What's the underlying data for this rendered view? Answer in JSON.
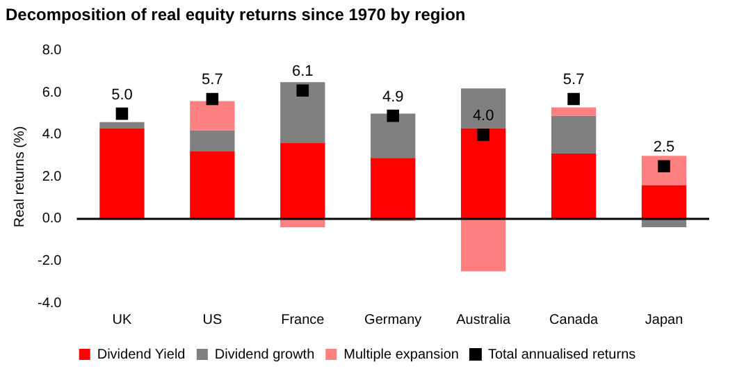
{
  "chart_data": {
    "type": "bar",
    "title": "Decomposition of real equity returns since 1970 by region",
    "ylabel": "Real returns (%)",
    "categories": [
      "UK",
      "US",
      "France",
      "Germany",
      "Australia",
      "Canada",
      "Japan"
    ],
    "stacked": true,
    "series": [
      {
        "name": "Dividend Yield",
        "color": "#ff0000",
        "values": [
          4.3,
          3.2,
          3.6,
          2.9,
          4.3,
          3.1,
          1.6
        ]
      },
      {
        "name": "Dividend growth",
        "color": "#808080",
        "values": [
          0.3,
          1.0,
          2.9,
          2.1,
          1.9,
          1.8,
          -0.4
        ]
      },
      {
        "name": "Multiple expansion",
        "color": "#ff8080",
        "values": [
          0.0,
          1.4,
          -0.4,
          -0.1,
          -2.5,
          0.4,
          1.4
        ]
      },
      {
        "name": "Total annualised returns",
        "type": "scatter",
        "color": "#000000",
        "marker": "square",
        "x": [
          "UK",
          "US",
          "France",
          "Germany",
          "Australia",
          "Canada",
          "Japan"
        ],
        "values": [
          5.0,
          5.7,
          6.1,
          4.9,
          4.0,
          5.7,
          2.5
        ],
        "value_labels": [
          "5.0",
          "5.7",
          "6.1",
          "4.9",
          "4.0",
          "5.7",
          "2.5"
        ]
      }
    ],
    "ylim": [
      -4,
      8
    ],
    "yticks": [
      {
        "value": -4,
        "label": "-4.0"
      },
      {
        "value": -2,
        "label": "-2.0"
      },
      {
        "value": 0,
        "label": "0.0"
      },
      {
        "value": 2,
        "label": "2.0"
      },
      {
        "value": 4,
        "label": "4.0"
      },
      {
        "value": 6,
        "label": "6.0"
      },
      {
        "value": 8,
        "label": "8.0"
      }
    ],
    "grid": false,
    "ref_lines": [
      {
        "axis": "y",
        "value": 0,
        "color": "#000000"
      }
    ],
    "legend": "bottom"
  }
}
